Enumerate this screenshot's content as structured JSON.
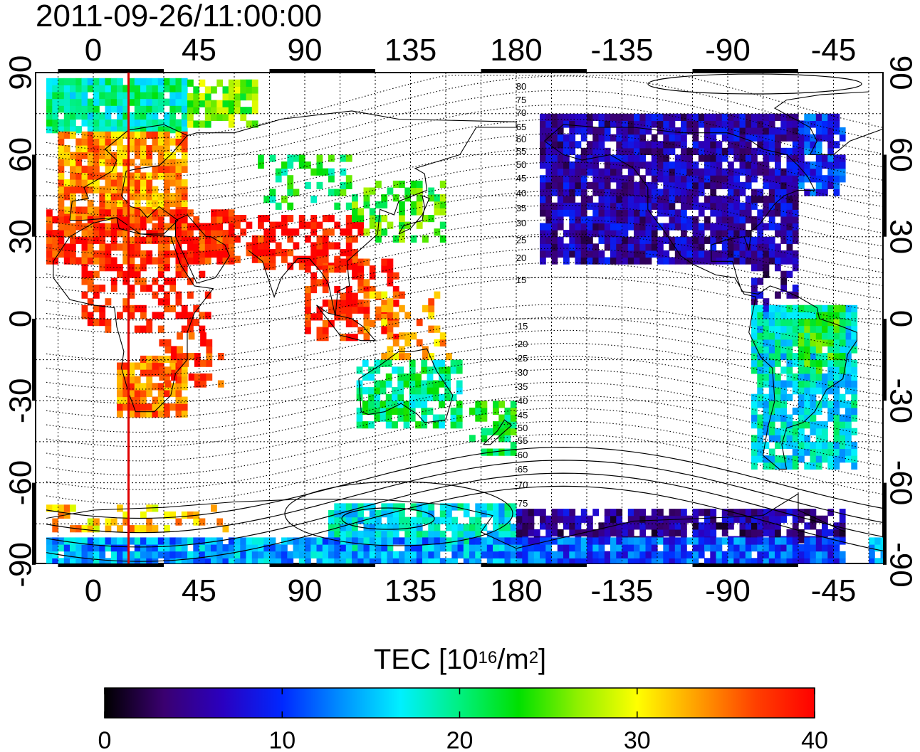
{
  "title": "2011-09-26/11:00:00",
  "top_lon_labels": [
    "0",
    "45",
    "90",
    "135",
    "180",
    "-135",
    "-90",
    "-45"
  ],
  "bottom_lon_labels": [
    "0",
    "45",
    "90",
    "135",
    "180",
    "-135",
    "-90",
    "-45"
  ],
  "left_lat_labels": [
    "90",
    "60",
    "30",
    "0",
    "-30",
    "-60",
    "-90"
  ],
  "right_lat_labels": [
    "90",
    "60",
    "30",
    "0",
    "-30",
    "-60",
    "-90"
  ],
  "contour_labels": [
    "80",
    "75",
    "70",
    "65",
    "60",
    "55",
    "50",
    "45",
    "40",
    "35",
    "30",
    "25",
    "20",
    "15",
    "-15",
    "-20",
    "-25",
    "-30",
    "-35",
    "-40",
    "-45",
    "-50",
    "-55",
    "-60",
    "-65",
    "-70",
    "-75"
  ],
  "meridian_marker_lon": 15,
  "meridian_marker_color": "#e00000",
  "colorbar": {
    "title_main": "TEC  [10",
    "title_exp1": "16",
    "title_mid": "/m",
    "title_exp2": "2",
    "title_end": "]",
    "min": 0,
    "max": 40,
    "tick_labels": [
      "0",
      "10",
      "20",
      "30",
      "40"
    ],
    "colormap": [
      "#000000",
      "#3a0070",
      "#2a00c0",
      "#0028ff",
      "#0090ff",
      "#00f0ff",
      "#00f080",
      "#00e000",
      "#90f000",
      "#ffff00",
      "#ffa000",
      "#ff4000",
      "#ff0000"
    ]
  },
  "tec_regions": [
    {
      "name": "europe",
      "value": 34
    },
    {
      "name": "north-africa",
      "value": 38
    },
    {
      "name": "south-asia",
      "value": 39
    },
    {
      "name": "southeast-asia",
      "value": 38
    },
    {
      "name": "east-asia",
      "value": 24
    },
    {
      "name": "australia",
      "value": 20
    },
    {
      "name": "southern-africa",
      "value": 35
    },
    {
      "name": "north-america",
      "value": 6
    },
    {
      "name": "south-america",
      "value": 17
    },
    {
      "name": "arctic",
      "value": 19
    },
    {
      "name": "antarctica",
      "value": 16
    },
    {
      "name": "siberia",
      "value": 22
    }
  ]
}
